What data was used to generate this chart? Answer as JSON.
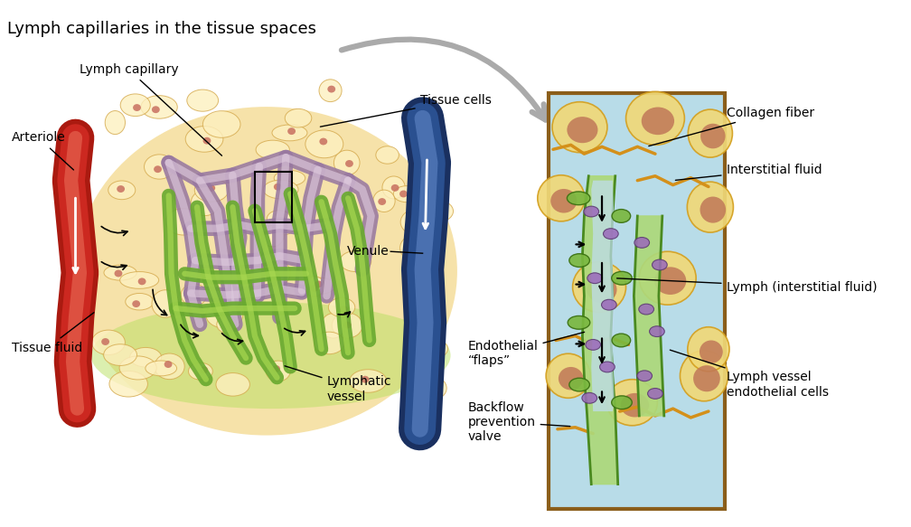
{
  "title": "Lymph capillaries in the tissue spaces",
  "title_fontsize": 13,
  "bg_color": "#ffffff",
  "labels": {
    "lymph_capillary": "Lymph capillary",
    "arteriole": "Arteriole",
    "tissue_fluid": "Tissue fluid",
    "tissue_cells": "Tissue cells",
    "venule": "Venule",
    "lymphatic_vessel": "Lymphatic\nvessel",
    "endothelial_flaps": "Endothelial\n“flaps”",
    "backflow_prevention": "Backflow\nprevention\nvalve",
    "collagen_fiber": "Collagen fiber",
    "interstitial_fluid": "Interstitial fluid",
    "lymph_interstitial": "Lymph (interstitial fluid)",
    "lymph_vessel_endo": "Lymph vessel\nendothelial cells"
  },
  "arteriole_dark": "#aa1a10",
  "arteriole_mid": "#cc2820",
  "arteriole_light": "#dd5040",
  "venule_dark": "#1a3060",
  "venule_mid": "#2a5090",
  "venule_light": "#4a70b0",
  "lymph_cap_color": "#9878a0",
  "lymph_cap_inner": "#ddc8dc",
  "green_dark": "#4a8820",
  "green_mid": "#6aaa30",
  "green_light": "#a8d850",
  "tissue_bg": "#f5dfa0",
  "tissue_cell_face": "#fdf0c0",
  "tissue_cell_edge": "#d4a84b",
  "red_dot": "#c87060",
  "green_glow": "#b8e060",
  "detail_bg": "#b8dce8",
  "detail_border": "#8b5e1a",
  "detail_cell_face": "#f0d878",
  "detail_cell_edge": "#d4a020",
  "detail_nucleus": "#c07858",
  "detail_green_face": "#add87a",
  "detail_green_edge": "#4a8a20",
  "detail_flap_face": "#7ab840",
  "detail_flap_edge": "#3a7010",
  "detail_purple": "#9b6aba",
  "detail_purple_edge": "#5a3870",
  "detail_fiber": "#d4901a",
  "detail_fluid": "#c0ddf0",
  "arrow_gray": "#aaaaaa",
  "black": "#000000",
  "white": "#ffffff"
}
